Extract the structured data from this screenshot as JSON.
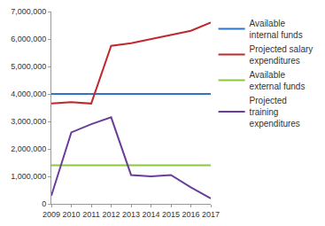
{
  "chart_data": {
    "type": "line",
    "x": [
      2009,
      2010,
      2011,
      2012,
      2013,
      2014,
      2015,
      2016,
      2017
    ],
    "series": [
      {
        "name": "Available internal funds",
        "color": "#2e75c7",
        "values": [
          4000000,
          4000000,
          4000000,
          4000000,
          4000000,
          4000000,
          4000000,
          4000000,
          4000000
        ]
      },
      {
        "name": "Projected salary expenditures",
        "color": "#c0282d",
        "values": [
          3650000,
          3700000,
          3650000,
          5750000,
          5850000,
          6000000,
          6150000,
          6300000,
          6600000
        ]
      },
      {
        "name": "Available external funds",
        "color": "#8dc63f",
        "values": [
          1400000,
          1400000,
          1400000,
          1400000,
          1400000,
          1400000,
          1400000,
          1400000,
          1400000
        ]
      },
      {
        "name": "Projected training expenditures",
        "color": "#6a3d9a",
        "values": [
          300000,
          2600000,
          2900000,
          3150000,
          1050000,
          1000000,
          1050000,
          600000,
          200000
        ]
      }
    ],
    "xlim": [
      2009,
      2017
    ],
    "xticks": [
      2009,
      2010,
      2011,
      2012,
      2013,
      2014,
      2015,
      2016,
      2017
    ],
    "ylim": [
      0,
      7000000
    ],
    "yticks": [
      0,
      {
        "value": 1000000,
        "label": "1,000,000"
      },
      {
        "value": 2000000,
        "label": "2,000,000"
      },
      {
        "value": 3000000,
        "label": "3,000,000"
      },
      {
        "value": 4000000,
        "label": "4,000,000"
      },
      {
        "value": 5000000,
        "label": "5,000,000"
      },
      {
        "value": 6000000,
        "label": "6,000,000"
      },
      {
        "value": 7000000,
        "label": "7,000,000"
      }
    ],
    "grid": false,
    "legend": "right"
  }
}
